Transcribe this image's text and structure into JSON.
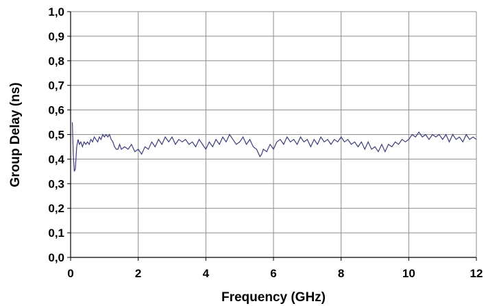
{
  "chart_data": {
    "type": "line",
    "xlabel": "Frequency (GHz)",
    "ylabel": "Group Delay (ns)",
    "xlim": [
      0,
      12
    ],
    "ylim": [
      0.0,
      1.0
    ],
    "grid": true,
    "x_ticks": [
      "0",
      "2",
      "4",
      "6",
      "8",
      "10",
      "12"
    ],
    "y_ticks": [
      "0,0",
      "0,1",
      "0,2",
      "0,3",
      "0,4",
      "0,5",
      "0,6",
      "0,7",
      "0,8",
      "0,9",
      "1,0"
    ],
    "line_color": "#3b3b7a",
    "series": [
      {
        "x": [
          0.05,
          0.08,
          0.11,
          0.14,
          0.18,
          0.22,
          0.26,
          0.3,
          0.35,
          0.4,
          0.45,
          0.5,
          0.55,
          0.6,
          0.65,
          0.7,
          0.75,
          0.8,
          0.85,
          0.9,
          0.95,
          1.0,
          1.05,
          1.1,
          1.15,
          1.2,
          1.25,
          1.3,
          1.35,
          1.4,
          1.45,
          1.5,
          1.6,
          1.7,
          1.8,
          1.9,
          2.0,
          2.1,
          2.2,
          2.3,
          2.4,
          2.5,
          2.6,
          2.7,
          2.8,
          2.9,
          3.0,
          3.1,
          3.2,
          3.3,
          3.4,
          3.5,
          3.6,
          3.7,
          3.8,
          3.9,
          4.0,
          4.1,
          4.2,
          4.3,
          4.4,
          4.5,
          4.6,
          4.7,
          4.8,
          4.9,
          5.0,
          5.1,
          5.2,
          5.3,
          5.4,
          5.5,
          5.6,
          5.65,
          5.7,
          5.8,
          5.9,
          6.0,
          6.1,
          6.2,
          6.3,
          6.4,
          6.5,
          6.6,
          6.7,
          6.8,
          6.9,
          7.0,
          7.1,
          7.2,
          7.3,
          7.4,
          7.5,
          7.6,
          7.7,
          7.8,
          7.9,
          8.0,
          8.1,
          8.2,
          8.3,
          8.4,
          8.5,
          8.6,
          8.7,
          8.8,
          8.9,
          9.0,
          9.1,
          9.2,
          9.3,
          9.4,
          9.5,
          9.6,
          9.7,
          9.8,
          9.9,
          10.0,
          10.1,
          10.2,
          10.3,
          10.4,
          10.5,
          10.6,
          10.7,
          10.8,
          10.9,
          11.0,
          11.1,
          11.2,
          11.3,
          11.4,
          11.5,
          11.6,
          11.7,
          11.8,
          11.9,
          12.0
        ],
        "y": [
          0.55,
          0.42,
          0.35,
          0.36,
          0.45,
          0.48,
          0.46,
          0.47,
          0.45,
          0.47,
          0.46,
          0.47,
          0.46,
          0.48,
          0.47,
          0.49,
          0.48,
          0.47,
          0.49,
          0.48,
          0.5,
          0.49,
          0.5,
          0.49,
          0.5,
          0.48,
          0.47,
          0.45,
          0.44,
          0.44,
          0.46,
          0.44,
          0.45,
          0.44,
          0.46,
          0.43,
          0.44,
          0.42,
          0.45,
          0.44,
          0.47,
          0.45,
          0.48,
          0.46,
          0.49,
          0.47,
          0.49,
          0.46,
          0.48,
          0.47,
          0.48,
          0.46,
          0.47,
          0.45,
          0.48,
          0.46,
          0.44,
          0.47,
          0.45,
          0.48,
          0.46,
          0.49,
          0.47,
          0.5,
          0.48,
          0.46,
          0.47,
          0.49,
          0.46,
          0.48,
          0.45,
          0.44,
          0.41,
          0.42,
          0.44,
          0.43,
          0.46,
          0.44,
          0.47,
          0.48,
          0.46,
          0.49,
          0.47,
          0.48,
          0.46,
          0.49,
          0.47,
          0.48,
          0.45,
          0.48,
          0.46,
          0.49,
          0.47,
          0.48,
          0.46,
          0.48,
          0.47,
          0.49,
          0.47,
          0.48,
          0.46,
          0.47,
          0.45,
          0.47,
          0.44,
          0.47,
          0.44,
          0.45,
          0.43,
          0.46,
          0.43,
          0.46,
          0.45,
          0.47,
          0.46,
          0.48,
          0.47,
          0.48,
          0.5,
          0.49,
          0.51,
          0.49,
          0.5,
          0.48,
          0.5,
          0.49,
          0.5,
          0.48,
          0.5,
          0.47,
          0.5,
          0.48,
          0.49,
          0.47,
          0.5,
          0.48,
          0.49,
          0.48
        ]
      }
    ]
  }
}
